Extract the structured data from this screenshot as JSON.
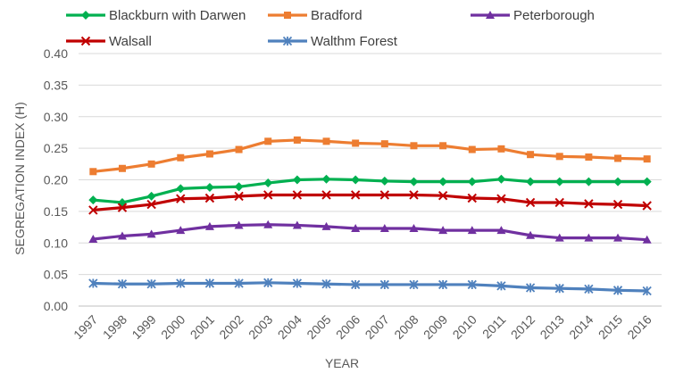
{
  "chart_data": {
    "type": "line",
    "title": "",
    "xlabel": "YEAR",
    "ylabel": "SEGREGATION INDEX (H)",
    "ylim": [
      0,
      0.4
    ],
    "yticks": [
      "0.00",
      "0.05",
      "0.10",
      "0.15",
      "0.20",
      "0.25",
      "0.30",
      "0.35",
      "0.40"
    ],
    "grid": "horizontal",
    "legend_position": "top",
    "categories": [
      "1997",
      "1998",
      "1999",
      "2000",
      "2001",
      "2002",
      "2003",
      "2004",
      "2005",
      "2006",
      "2007",
      "2008",
      "2009",
      "2010",
      "2011",
      "2012",
      "2013",
      "2014",
      "2015",
      "2016"
    ],
    "series": [
      {
        "name": "Blackburn with Darwen",
        "color": "#00b050",
        "marker": "diamond",
        "values": [
          0.168,
          0.164,
          0.174,
          0.186,
          0.188,
          0.189,
          0.195,
          0.2,
          0.201,
          0.2,
          0.198,
          0.197,
          0.197,
          0.197,
          0.201,
          0.197,
          0.197,
          0.197,
          0.197,
          0.197
        ]
      },
      {
        "name": "Bradford",
        "color": "#ed7d31",
        "marker": "square",
        "values": [
          0.213,
          0.218,
          0.225,
          0.235,
          0.241,
          0.248,
          0.261,
          0.263,
          0.261,
          0.258,
          0.257,
          0.254,
          0.254,
          0.248,
          0.249,
          0.24,
          0.237,
          0.236,
          0.234,
          0.233
        ]
      },
      {
        "name": "Peterborough",
        "color": "#7030a0",
        "marker": "triangle",
        "values": [
          0.106,
          0.111,
          0.114,
          0.12,
          0.126,
          0.128,
          0.129,
          0.128,
          0.126,
          0.123,
          0.123,
          0.123,
          0.12,
          0.12,
          0.12,
          0.112,
          0.108,
          0.108,
          0.108,
          0.105
        ]
      },
      {
        "name": "Walsall",
        "color": "#c00000",
        "marker": "x",
        "values": [
          0.152,
          0.156,
          0.161,
          0.17,
          0.171,
          0.174,
          0.176,
          0.176,
          0.176,
          0.176,
          0.176,
          0.176,
          0.175,
          0.171,
          0.17,
          0.164,
          0.164,
          0.162,
          0.161,
          0.159
        ]
      },
      {
        "name": "Walthm Forest",
        "color": "#4f81bd",
        "marker": "star",
        "values": [
          0.036,
          0.035,
          0.035,
          0.036,
          0.036,
          0.036,
          0.037,
          0.036,
          0.035,
          0.034,
          0.034,
          0.034,
          0.034,
          0.034,
          0.032,
          0.029,
          0.028,
          0.027,
          0.025,
          0.024
        ]
      }
    ]
  }
}
